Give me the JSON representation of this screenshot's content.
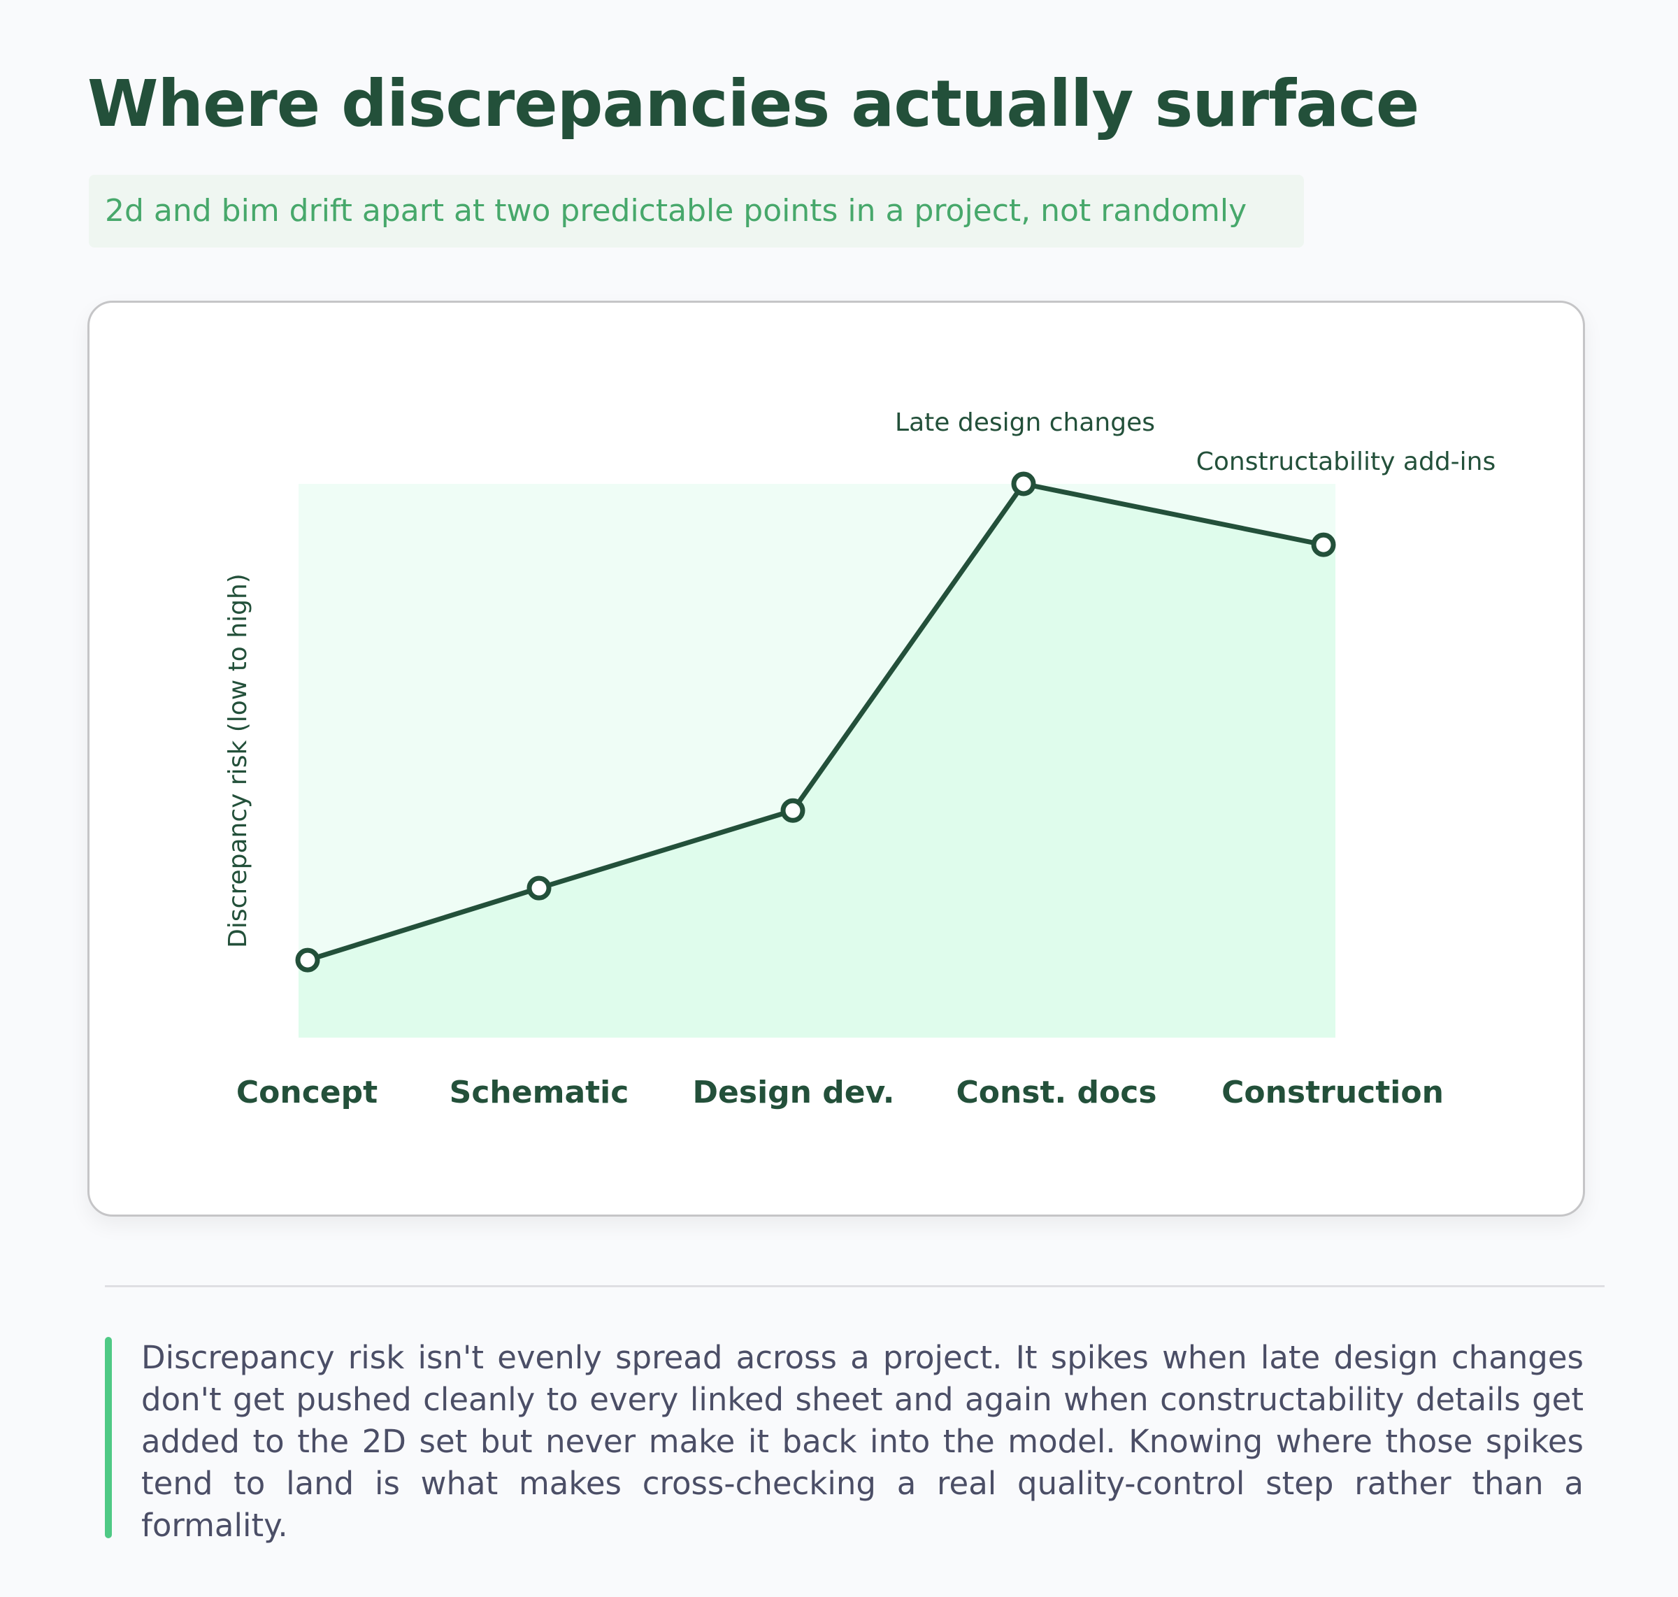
{
  "header": {
    "title": "Where discrepancies actually surface",
    "subtitle": "2d and bim drift apart at two predictable points in a project, not randomly"
  },
  "chart_data": {
    "type": "line",
    "categories": [
      "Concept",
      "Schematic",
      "Design dev.",
      "Const. docs",
      "Construction"
    ],
    "values": [
      0.14,
      0.27,
      0.41,
      1.0,
      0.89
    ],
    "ylabel": "Discrepancy risk (low to high)",
    "xlabel": "",
    "ylim": [
      0,
      1
    ],
    "grid": false,
    "area_fill": true,
    "annotations": [
      {
        "category": "Const. docs",
        "text": "Late design changes"
      },
      {
        "category": "Construction",
        "text": "Constructability add-ins"
      }
    ],
    "colors": {
      "line": "#23503a",
      "area": "#dffcec",
      "plot_background": "#effdf6",
      "label": "#23503a"
    }
  },
  "note": {
    "text": "Discrepancy risk isn't evenly spread across a project. It spikes when late design changes don't get pushed cleanly to every linked sheet and again when constructability details get added to the 2D set but never make it back into the model. Knowing where those spikes tend to land is what makes cross-checking a real quality-control step rather than a formality."
  }
}
